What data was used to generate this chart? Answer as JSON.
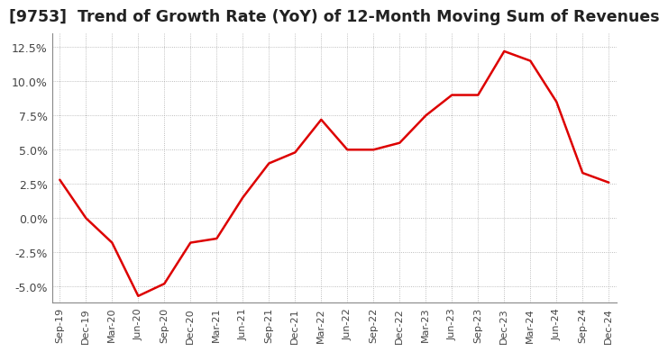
{
  "title": "[9753]  Trend of Growth Rate (YoY) of 12-Month Moving Sum of Revenues",
  "x_labels": [
    "Sep-19",
    "Dec-19",
    "Mar-20",
    "Jun-20",
    "Sep-20",
    "Dec-20",
    "Mar-21",
    "Jun-21",
    "Sep-21",
    "Dec-21",
    "Mar-22",
    "Jun-22",
    "Sep-22",
    "Dec-22",
    "Mar-23",
    "Jun-23",
    "Sep-23",
    "Dec-23",
    "Mar-24",
    "Jun-24",
    "Sep-24",
    "Dec-24"
  ],
  "y_values": [
    2.8,
    0.0,
    -1.8,
    -5.7,
    -4.8,
    -1.8,
    -1.5,
    1.5,
    4.0,
    4.8,
    7.2,
    5.0,
    5.0,
    5.5,
    7.5,
    9.0,
    9.0,
    12.2,
    11.5,
    8.5,
    3.3,
    2.6
  ],
  "line_color": "#dd0000",
  "background_color": "#ffffff",
  "grid_color": "#aaaaaa",
  "title_color": "#222222",
  "ylim": [
    -6.2,
    13.5
  ],
  "yticks": [
    -5.0,
    -2.5,
    0.0,
    2.5,
    5.0,
    7.5,
    10.0,
    12.5
  ],
  "title_fontsize": 12.5
}
